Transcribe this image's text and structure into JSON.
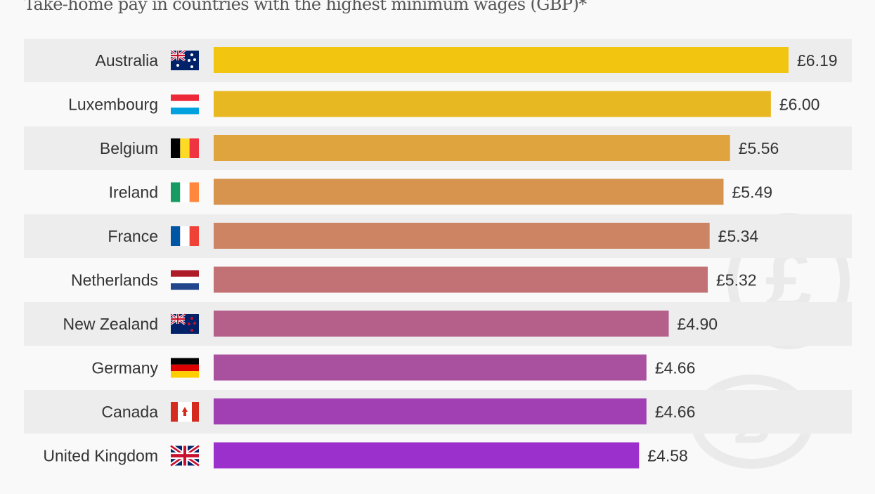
{
  "chart_data": {
    "type": "bar",
    "orientation": "horizontal",
    "title": "Take-home pay in countries with the highest minimum wages (GBP)*",
    "categories": [
      "Australia",
      "Luxembourg",
      "Belgium",
      "Ireland",
      "France",
      "Netherlands",
      "New Zealand",
      "Germany",
      "Canada",
      "United Kingdom"
    ],
    "values": [
      6.19,
      6.0,
      5.56,
      5.49,
      5.34,
      5.32,
      4.9,
      4.66,
      4.66,
      4.58
    ],
    "value_labels": [
      "£6.19",
      "£6.00",
      "£5.56",
      "£5.49",
      "£5.34",
      "£5.32",
      "£4.90",
      "£4.66",
      "£4.66",
      "£4.58"
    ],
    "flags": [
      "australia-flag",
      "luxembourg-flag",
      "belgium-flag",
      "ireland-flag",
      "france-flag",
      "netherlands-flag",
      "new-zealand-flag",
      "germany-flag",
      "canada-flag",
      "united-kingdom-flag"
    ],
    "colors": [
      "#f2c511",
      "#e8b823",
      "#dfa43e",
      "#d6944e",
      "#cc8462",
      "#c27174",
      "#b5608b",
      "#a9509f",
      "#a040b3",
      "#9b30cc"
    ],
    "xlim": [
      0,
      6.19
    ],
    "grid": false,
    "legend": "none"
  }
}
